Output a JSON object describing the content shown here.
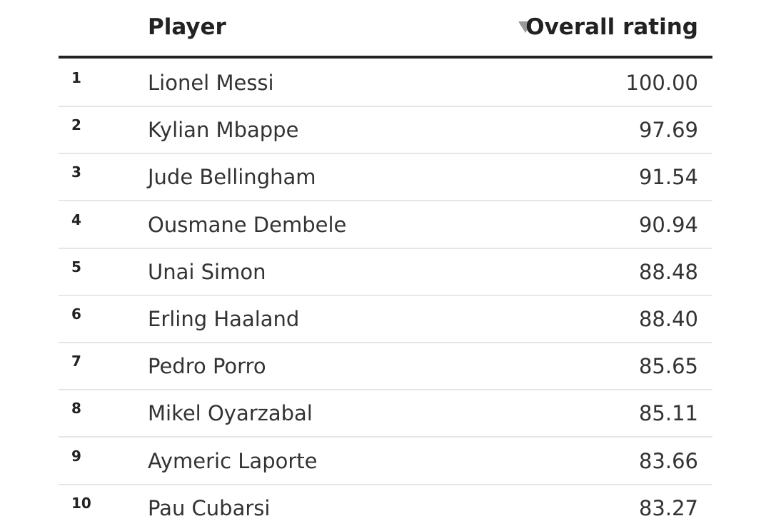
{
  "table": {
    "columns": [
      "Player",
      "Overall rating"
    ],
    "rows": [
      [
        "1",
        "Lionel Messi",
        "100.00"
      ],
      [
        "2",
        "Kylian Mbappe",
        "97.69"
      ],
      [
        "3",
        "Jude Bellingham",
        "91.54"
      ],
      [
        "4",
        "Ousmane Dembele",
        "90.94"
      ],
      [
        "5",
        "Unai Simon",
        "88.48"
      ],
      [
        "6",
        "Erling Haaland",
        "88.40"
      ],
      [
        "7",
        "Pedro Porro",
        "85.65"
      ],
      [
        "8",
        "Mikel Oyarzabal",
        "85.11"
      ],
      [
        "9",
        "Aymeric Laporte",
        "83.66"
      ],
      [
        "10",
        "Pau Cubarsi",
        "83.27"
      ]
    ]
  }
}
